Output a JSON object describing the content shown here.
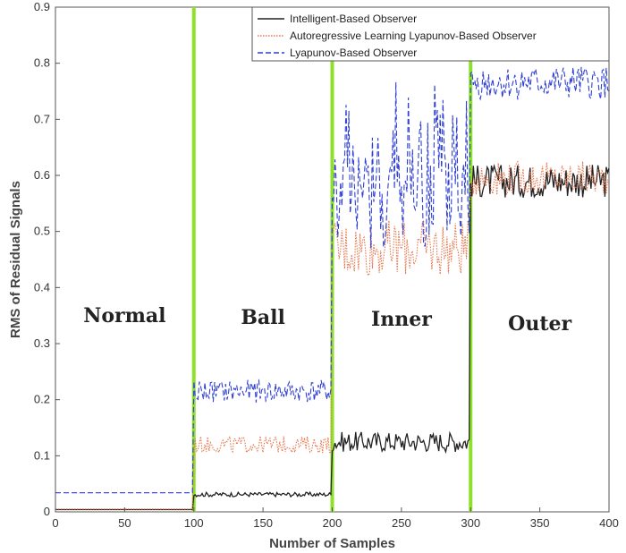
{
  "chart_data": {
    "type": "line",
    "title": "",
    "xlabel": "Number of Samples",
    "ylabel": "RMS of Residual Signals",
    "xlim": [
      0,
      400
    ],
    "ylim": [
      0,
      0.9
    ],
    "xticks": [
      "0",
      "50",
      "100",
      "150",
      "200",
      "250",
      "300",
      "350",
      "400"
    ],
    "yticks": [
      "0",
      "0.1",
      "0.2",
      "0.3",
      "0.4",
      "0.5",
      "0.6",
      "0.7",
      "0.8",
      "0.9"
    ],
    "grid": false,
    "legend_position": "top-right",
    "segments": [
      {
        "label": "Normal",
        "x_range": [
          0,
          100
        ]
      },
      {
        "label": "Ball",
        "x_range": [
          100,
          200
        ]
      },
      {
        "label": "Inner",
        "x_range": [
          200,
          300
        ]
      },
      {
        "label": "Outer",
        "x_range": [
          300,
          400
        ]
      }
    ],
    "boundaries": [
      100,
      200,
      300
    ],
    "boundary_color": "#8ee02a",
    "series": [
      {
        "name": "Intelligent-Based Observer",
        "color": "#222222",
        "style": "solid",
        "segment_levels": [
          {
            "x_range": [
              0,
              100
            ],
            "mean": 0.004,
            "amp": 0.0
          },
          {
            "x_range": [
              100,
              200
            ],
            "mean": 0.031,
            "amp": 0.004
          },
          {
            "x_range": [
              200,
              300
            ],
            "mean": 0.125,
            "amp": 0.018
          },
          {
            "x_range": [
              300,
              400
            ],
            "mean": 0.59,
            "amp": 0.03
          }
        ]
      },
      {
        "name": "Autoregressive Learning Lyapunov-Based Observer",
        "color": "#e8734a",
        "style": "dotted",
        "segment_levels": [
          {
            "x_range": [
              0,
              100
            ],
            "mean": 0.005,
            "amp": 0.0
          },
          {
            "x_range": [
              100,
              200
            ],
            "mean": 0.12,
            "amp": 0.015
          },
          {
            "x_range": [
              200,
              300
            ],
            "mean": 0.47,
            "amp": 0.05
          },
          {
            "x_range": [
              300,
              400
            ],
            "mean": 0.595,
            "amp": 0.03
          }
        ]
      },
      {
        "name": "Lyapunov-Based Observer",
        "color": "#2f3fd6",
        "style": "dashed",
        "segment_levels": [
          {
            "x_range": [
              0,
              100
            ],
            "mean": 0.034,
            "amp": 0.0
          },
          {
            "x_range": [
              100,
              200
            ],
            "mean": 0.215,
            "amp": 0.02
          },
          {
            "x_range": [
              200,
              300
            ],
            "mean": 0.56,
            "amp": 0.09
          },
          {
            "x_range": [
              300,
              400
            ],
            "mean": 0.765,
            "amp": 0.03
          }
        ]
      }
    ]
  }
}
